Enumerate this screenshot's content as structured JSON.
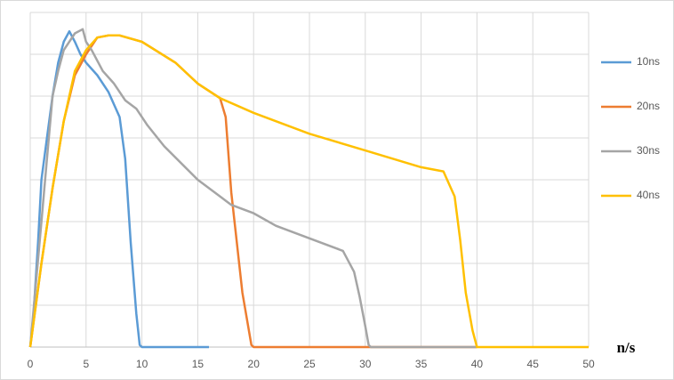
{
  "chart_data": {
    "type": "line",
    "x_label": "n/s",
    "xlim": [
      0,
      50
    ],
    "xticks": [
      0,
      5,
      10,
      15,
      20,
      25,
      30,
      35,
      40,
      45,
      50
    ],
    "ylim": [
      0,
      8
    ],
    "ygrid": [
      1,
      2,
      3,
      4,
      5,
      6,
      7,
      8
    ],
    "grid": true,
    "legend": "right",
    "series": [
      {
        "name": "10ns",
        "color": "#5b9bd5",
        "x": [
          0,
          0.3,
          0.7,
          1,
          1.5,
          2,
          2.5,
          3,
          3.5,
          4,
          4.5,
          5,
          6,
          7,
          8,
          8.5,
          9,
          9.5,
          9.8,
          10,
          16
        ],
        "values": [
          0,
          0.8,
          2.5,
          4,
          5,
          6,
          6.8,
          7.3,
          7.55,
          7.3,
          7,
          6.8,
          6.5,
          6.1,
          5.5,
          4.5,
          2.5,
          0.8,
          0.05,
          0,
          0
        ]
      },
      {
        "name": "20ns",
        "color": "#ed7d31",
        "x": [
          0,
          0.5,
          1,
          2,
          3,
          4,
          5,
          6,
          7,
          8,
          10,
          13,
          15,
          17,
          17.5,
          18,
          19,
          19.8,
          20,
          40
        ],
        "values": [
          0,
          1,
          2,
          3.8,
          5.4,
          6.5,
          7,
          7.4,
          7.45,
          7.45,
          7.3,
          6.8,
          6.3,
          5.95,
          5.5,
          3.7,
          1.3,
          0.05,
          0,
          0
        ]
      },
      {
        "name": "30ns",
        "color": "#a5a5a5",
        "x": [
          0,
          0.5,
          1,
          1.5,
          2,
          2.5,
          3,
          4,
          4.7,
          5,
          5.5,
          6.5,
          7.5,
          8.5,
          9.5,
          10.5,
          12,
          13.5,
          15,
          17,
          18,
          20,
          22,
          25,
          27,
          28,
          29,
          29.5,
          30,
          30.3,
          30.5,
          40
        ],
        "values": [
          0,
          1.5,
          3,
          4.5,
          6,
          6.6,
          7.1,
          7.5,
          7.6,
          7.3,
          7.1,
          6.6,
          6.3,
          5.9,
          5.7,
          5.3,
          4.8,
          4.4,
          4,
          3.6,
          3.4,
          3.2,
          2.9,
          2.6,
          2.4,
          2.3,
          1.8,
          1.2,
          0.5,
          0.05,
          0,
          0
        ]
      },
      {
        "name": "40ns",
        "color": "#ffc000",
        "x": [
          0,
          0.5,
          1,
          2,
          3,
          4,
          5,
          6,
          7,
          8,
          10,
          13,
          15,
          17,
          20,
          25,
          30,
          35,
          37,
          38,
          38.5,
          39,
          39.6,
          40,
          50
        ],
        "values": [
          0,
          1,
          2,
          3.8,
          5.4,
          6.6,
          7.1,
          7.4,
          7.45,
          7.45,
          7.3,
          6.8,
          6.3,
          5.95,
          5.6,
          5.1,
          4.7,
          4.3,
          4.2,
          3.6,
          2.55,
          1.3,
          0.4,
          0,
          0
        ]
      }
    ]
  }
}
